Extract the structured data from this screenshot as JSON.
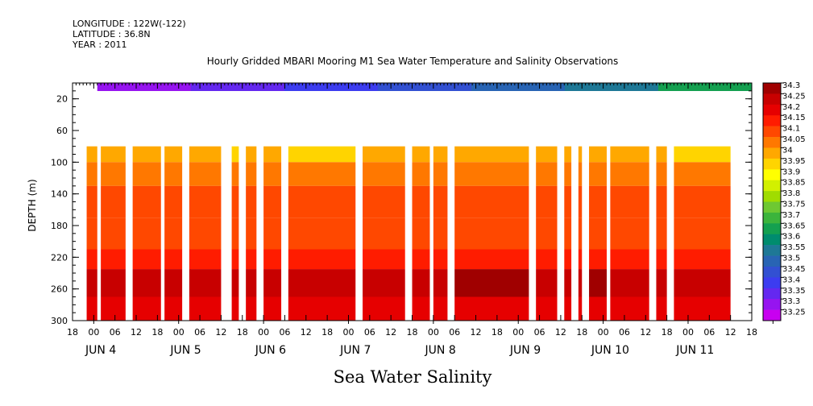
{
  "header": {
    "longitude": "LONGITUDE : 122W(-122)",
    "latitude": "LATITUDE : 36.8N",
    "year": "YEAR : 2011"
  },
  "chart_data": {
    "type": "heatmap",
    "title": "Hourly Gridded MBARI Mooring M1 Sea Water Temperature and Salinity Observations",
    "bottom_title": "Sea Water Salinity",
    "ylabel": "DEPTH (m)",
    "y_reversed": true,
    "ylim": [
      300,
      0
    ],
    "y_ticks": [
      20,
      60,
      100,
      140,
      180,
      220,
      260,
      300
    ],
    "x_hour_ticks": [
      "18",
      "00",
      "06",
      "12",
      "18",
      "00",
      "06",
      "12",
      "18",
      "00",
      "06",
      "12",
      "18",
      "00",
      "06",
      "12",
      "18",
      "00",
      "06",
      "12",
      "18",
      "00",
      "06",
      "12",
      "18",
      "00",
      "06",
      "12",
      "18",
      "00",
      "06",
      "12",
      "18"
    ],
    "x_date_labels": [
      "JUN  4",
      "JUN  5",
      "JUN  6",
      "JUN  7",
      "JUN  8",
      "JUN  9",
      "JUN 10",
      "JUN 11"
    ],
    "colorbar": {
      "levels": [
        34.3,
        34.25,
        34.2,
        34.15,
        34.1,
        34.05,
        34,
        33.95,
        33.9,
        33.85,
        33.8,
        33.75,
        33.7,
        33.65,
        33.6,
        33.55,
        33.5,
        33.45,
        33.4,
        33.35,
        33.3,
        33.25
      ],
      "colors": [
        "#a00000",
        "#c80000",
        "#e60000",
        "#ff1c00",
        "#ff4800",
        "#ff7800",
        "#ffa800",
        "#ffd400",
        "#ffff00",
        "#d2f000",
        "#a0dc00",
        "#6ec832",
        "#3cb43c",
        "#14a050",
        "#008c6e",
        "#1e7896",
        "#2864b4",
        "#3250d2",
        "#3c3cf0",
        "#6428f0",
        "#9614f0",
        "#c800f0"
      ]
    },
    "top_band_colors": [
      "#9614f0",
      "#6428f0",
      "#3c3cf0",
      "#3250d2",
      "#2864b4",
      "#1e7896",
      "#14a050"
    ],
    "data_columns": [
      {
        "start_hour": 4,
        "end_hour": 7
      },
      {
        "start_hour": 8,
        "end_hour": 15
      },
      {
        "start_hour": 17,
        "end_hour": 25
      },
      {
        "start_hour": 26,
        "end_hour": 31
      },
      {
        "start_hour": 33,
        "end_hour": 42
      },
      {
        "start_hour": 45,
        "end_hour": 47
      },
      {
        "start_hour": 49,
        "end_hour": 52
      },
      {
        "start_hour": 54,
        "end_hour": 59
      },
      {
        "start_hour": 61,
        "end_hour": 80
      },
      {
        "start_hour": 82,
        "end_hour": 94
      },
      {
        "start_hour": 96,
        "end_hour": 101
      },
      {
        "start_hour": 102,
        "end_hour": 106
      },
      {
        "start_hour": 108,
        "end_hour": 129
      },
      {
        "start_hour": 131,
        "end_hour": 137
      },
      {
        "start_hour": 139,
        "end_hour": 141
      },
      {
        "start_hour": 143,
        "end_hour": 144
      },
      {
        "start_hour": 146,
        "end_hour": 151
      },
      {
        "start_hour": 152,
        "end_hour": 163
      },
      {
        "start_hour": 165,
        "end_hour": 168
      },
      {
        "start_hour": 170,
        "end_hour": 186
      }
    ],
    "depth_profile": [
      {
        "depth_from": 80,
        "depth_to": 100,
        "salinity": 34.0
      },
      {
        "depth_from": 100,
        "depth_to": 130,
        "salinity": 34.05
      },
      {
        "depth_from": 130,
        "depth_to": 170,
        "salinity": 34.1
      },
      {
        "depth_from": 170,
        "depth_to": 210,
        "salinity": 34.1
      },
      {
        "depth_from": 210,
        "depth_to": 235,
        "salinity": 34.15
      },
      {
        "depth_from": 235,
        "depth_to": 270,
        "salinity": 34.25
      },
      {
        "depth_from": 270,
        "depth_to": 300,
        "salinity": 34.2
      }
    ]
  }
}
